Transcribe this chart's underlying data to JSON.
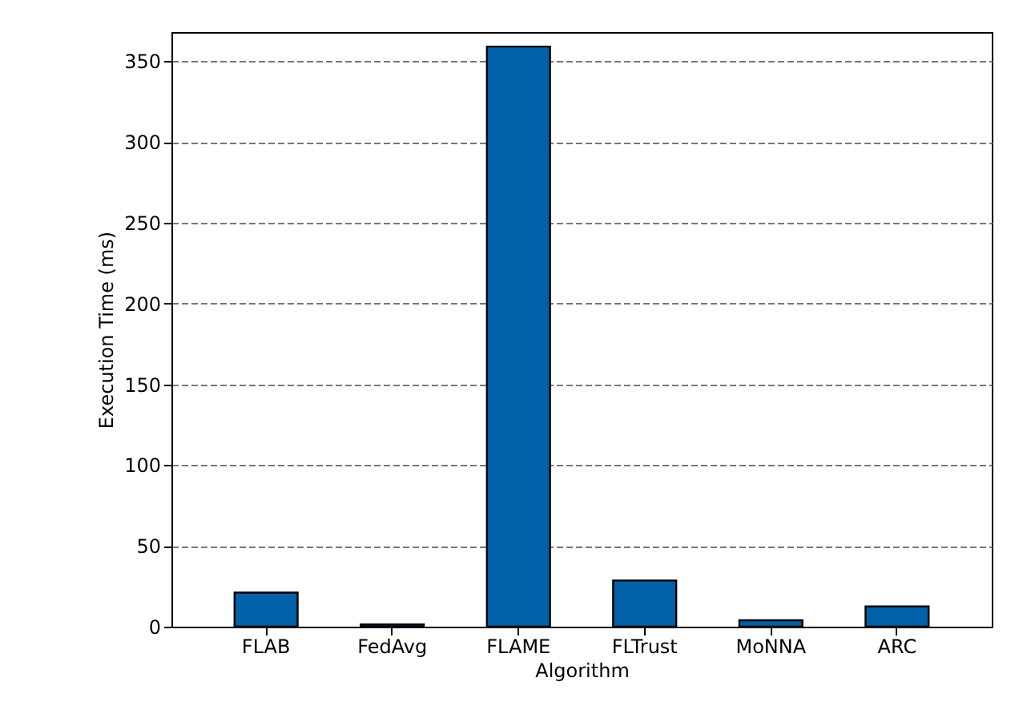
{
  "chart_data": {
    "type": "bar",
    "xlabel": "Algorithm",
    "ylabel": "Execution Time (ms)",
    "categories": [
      "FLAB",
      "FedAvg",
      "FLAME",
      "FLTrust",
      "MoNNA",
      "ARC"
    ],
    "values": [
      21.1,
      1.4,
      359,
      28.6,
      4,
      12.5
    ],
    "color": "#0060a8",
    "ylim": [
      0,
      368
    ],
    "yticks": [
      0,
      50,
      100,
      150,
      200,
      250,
      300,
      350
    ],
    "grid": "y"
  }
}
